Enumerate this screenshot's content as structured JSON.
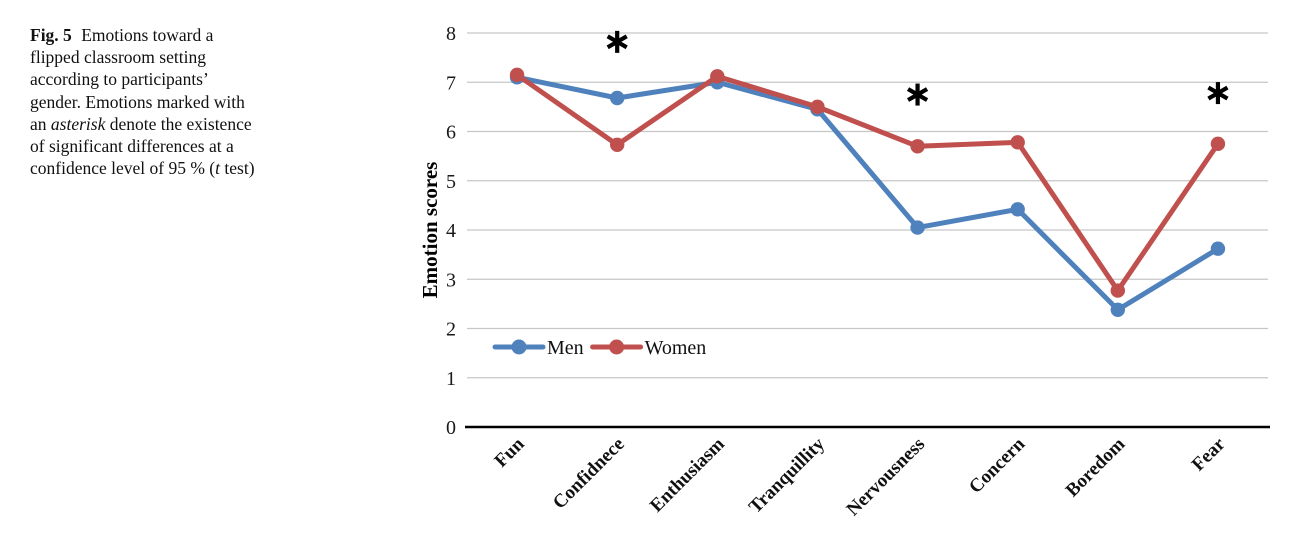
{
  "caption": {
    "lines": [
      {
        "parts": [
          {
            "text": "Fig. 5",
            "style": "bold"
          },
          {
            "text": " Emotions toward a",
            "style": "normal"
          }
        ]
      },
      {
        "parts": [
          {
            "text": "flipped classroom setting",
            "style": "normal"
          }
        ]
      },
      {
        "parts": [
          {
            "text": "according to participants’",
            "style": "normal"
          }
        ]
      },
      {
        "parts": [
          {
            "text": "gender. Emotions marked with",
            "style": "normal"
          }
        ]
      },
      {
        "parts": [
          {
            "text": "an ",
            "style": "normal"
          },
          {
            "text": "asterisk",
            "style": "italic"
          },
          {
            "text": " denote the existence",
            "style": "normal"
          }
        ]
      },
      {
        "parts": [
          {
            "text": "of significant differences at a",
            "style": "normal"
          }
        ]
      },
      {
        "parts": [
          {
            "text": "confidence level of 95 % (",
            "style": "normal"
          },
          {
            "text": "t",
            "style": "italic"
          },
          {
            "text": " test)",
            "style": "normal"
          }
        ]
      }
    ]
  },
  "chart_data": {
    "type": "line",
    "title": "",
    "categories": [
      "Fun",
      "Confidnece",
      "Enthusiasm",
      "Tranquillity",
      "Nervousness",
      "Concern",
      "Boredom",
      "Fear"
    ],
    "series": [
      {
        "name": "Men",
        "color": "#4F81BD",
        "values": [
          7.1,
          6.68,
          7.0,
          6.45,
          4.05,
          4.42,
          2.38,
          3.62
        ]
      },
      {
        "name": "Women",
        "color": "#C0504D",
        "values": [
          7.15,
          5.73,
          7.12,
          6.5,
          5.7,
          5.78,
          2.77,
          5.75
        ]
      }
    ],
    "xlabel": "",
    "ylabel": "Emotion scores",
    "ylim": [
      0,
      8
    ],
    "ytick_step": 1,
    "grid": "horizontal",
    "grid_color": "#C6C6C6",
    "axis_color": "#000000",
    "tick_label_color": "#1A1A1A",
    "annotation_color": "#000000",
    "legend_position": "inside-lower-left",
    "annotations": [
      {
        "symbol": "*",
        "category": "Confidnece",
        "value": 7.82
      },
      {
        "symbol": "*",
        "category": "Nervousness",
        "value": 6.75
      },
      {
        "symbol": "*",
        "category": "Fear",
        "value": 6.78
      }
    ]
  }
}
